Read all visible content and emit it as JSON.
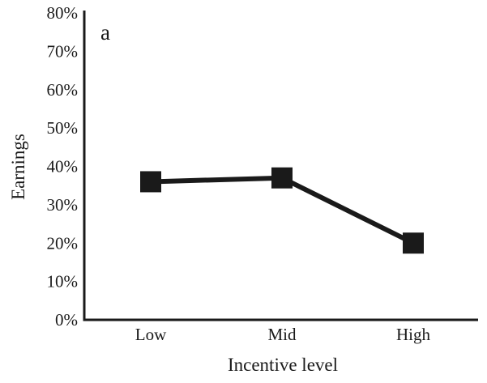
{
  "chart_data": {
    "type": "line",
    "panel_label": "a",
    "title": "",
    "xlabel": "Incentive level",
    "ylabel": "Earnings",
    "categories": [
      "Low",
      "Mid",
      "High"
    ],
    "series": [
      {
        "values": [
          36,
          37,
          20
        ]
      }
    ],
    "ylim": [
      0,
      80
    ],
    "yticks": [
      0,
      10,
      20,
      30,
      40,
      50,
      60,
      70,
      80
    ],
    "ytick_suffix": "%",
    "grid": false,
    "legend": "none",
    "marker": "square",
    "line_color": "#1a1a1a",
    "marker_color": "#1a1a1a"
  }
}
